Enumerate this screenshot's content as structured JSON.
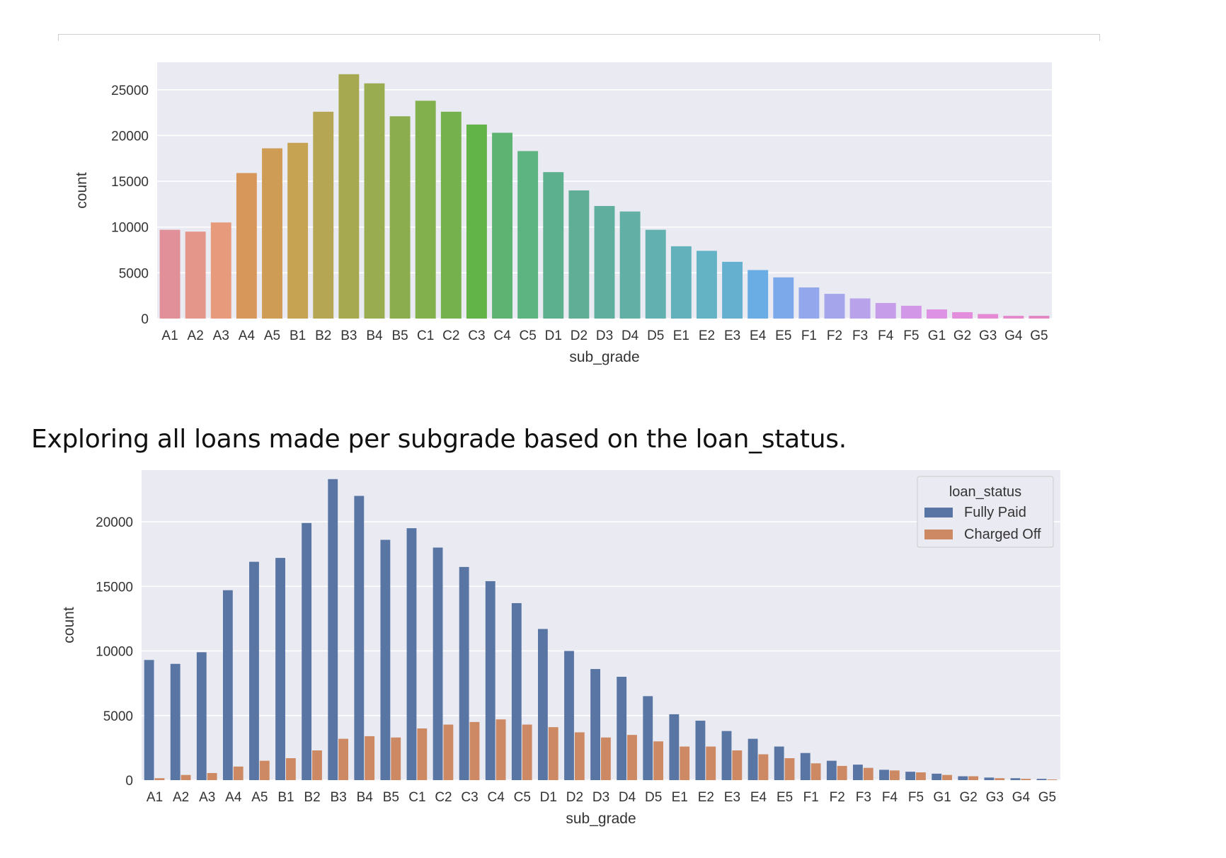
{
  "caption": "Exploring all loans made per subgrade based on the loan_status.",
  "chart_data": [
    {
      "type": "bar",
      "xlabel": "sub_grade",
      "ylabel": "count",
      "ylim": [
        0,
        28000
      ],
      "yticks": [
        0,
        5000,
        10000,
        15000,
        20000,
        25000
      ],
      "grid": true,
      "categories": [
        "A1",
        "A2",
        "A3",
        "A4",
        "A5",
        "B1",
        "B2",
        "B3",
        "B4",
        "B5",
        "C1",
        "C2",
        "C3",
        "C4",
        "C5",
        "D1",
        "D2",
        "D3",
        "D4",
        "D5",
        "E1",
        "E2",
        "E3",
        "E4",
        "E5",
        "F1",
        "F2",
        "F3",
        "F4",
        "F5",
        "G1",
        "G2",
        "G3",
        "G4",
        "G5"
      ],
      "values": [
        9700,
        9500,
        10500,
        15900,
        18600,
        19200,
        22600,
        26700,
        25700,
        22100,
        23800,
        22600,
        21200,
        20300,
        18300,
        16000,
        14000,
        12300,
        11700,
        9700,
        7900,
        7400,
        6200,
        5300,
        4500,
        3400,
        2700,
        2200,
        1700,
        1400,
        1000,
        700,
        500,
        300,
        300
      ],
      "colors": [
        "#e1909a",
        "#e4968b",
        "#e79b7c",
        "#d8975a",
        "#cf9c55",
        "#c5a353",
        "#b4a652",
        "#a6a950",
        "#99ac50",
        "#8cad4e",
        "#82b04d",
        "#75b14c",
        "#63b448",
        "#5eb372",
        "#5eb481",
        "#5db08d",
        "#5fae95",
        "#60ae9d",
        "#61afa5",
        "#62b0b0",
        "#63b2bb",
        "#63b3c5",
        "#66b0cf",
        "#6aade4",
        "#7ba9ea",
        "#93a8ec",
        "#a4a5eb",
        "#b8a3ea",
        "#c69de8",
        "#d297e6",
        "#de92e3",
        "#e28edc",
        "#e48bd3",
        "#e489ca",
        "#e287c1"
      ]
    },
    {
      "type": "bar",
      "xlabel": "sub_grade",
      "ylabel": "count",
      "ylim": [
        0,
        24000
      ],
      "yticks": [
        0,
        5000,
        10000,
        15000,
        20000
      ],
      "grid": true,
      "legend": {
        "title": "loan_status",
        "placement": "top-right"
      },
      "categories": [
        "A1",
        "A2",
        "A3",
        "A4",
        "A5",
        "B1",
        "B2",
        "B3",
        "B4",
        "B5",
        "C1",
        "C2",
        "C3",
        "C4",
        "C5",
        "D1",
        "D2",
        "D3",
        "D4",
        "D5",
        "E1",
        "E2",
        "E3",
        "E4",
        "E5",
        "F1",
        "F2",
        "F3",
        "F4",
        "F5",
        "G1",
        "G2",
        "G3",
        "G4",
        "G5"
      ],
      "series": [
        {
          "name": "Fully Paid",
          "color": "#5975a4",
          "values": [
            9300,
            9000,
            9900,
            14700,
            16900,
            17200,
            19900,
            23300,
            22000,
            18600,
            19500,
            18000,
            16500,
            15400,
            13700,
            11700,
            10000,
            8600,
            8000,
            6500,
            5100,
            4600,
            3800,
            3200,
            2600,
            2100,
            1500,
            1200,
            800,
            650,
            500,
            300,
            200,
            150,
            100
          ]
        },
        {
          "name": "Charged Off",
          "color": "#cc8963",
          "values": [
            150,
            400,
            550,
            1050,
            1500,
            1700,
            2300,
            3200,
            3400,
            3300,
            4000,
            4300,
            4500,
            4700,
            4300,
            4100,
            3700,
            3300,
            3500,
            3000,
            2600,
            2600,
            2300,
            2000,
            1700,
            1300,
            1100,
            950,
            750,
            600,
            400,
            300,
            150,
            100,
            50
          ]
        }
      ]
    }
  ]
}
